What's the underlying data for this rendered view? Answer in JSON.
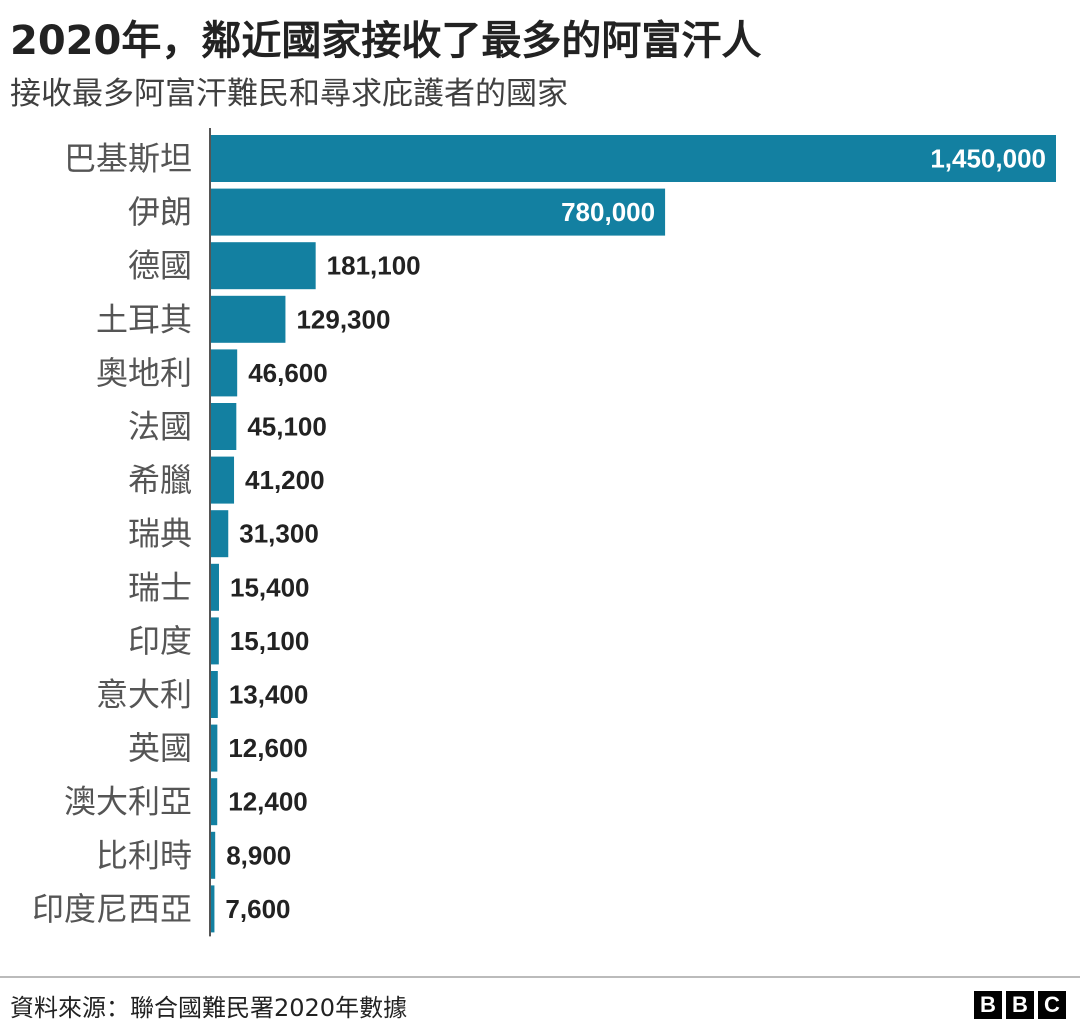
{
  "header": {
    "title": "2020年，鄰近國家接收了最多的阿富汗人",
    "subtitle": "接收最多阿富汗難民和尋求庇護者的國家"
  },
  "footer": {
    "source": "資料來源：聯合國難民署2020年數據",
    "logo_letters": [
      "B",
      "B",
      "C"
    ]
  },
  "colors": {
    "bar": "#1380a1",
    "axis": "#555555",
    "label_inside": "#ffffff",
    "label_outside": "#222222",
    "category_text": "#555555"
  },
  "chart_data": {
    "type": "bar",
    "orientation": "horizontal",
    "categories": [
      "巴基斯坦",
      "伊朗",
      "德國",
      "土耳其",
      "奧地利",
      "法國",
      "希臘",
      "瑞典",
      "瑞士",
      "印度",
      "意大利",
      "英國",
      "澳大利亞",
      "比利時",
      "印度尼西亞"
    ],
    "values": [
      1450000,
      780000,
      181100,
      129300,
      46600,
      45100,
      41200,
      31300,
      15400,
      15100,
      13400,
      12600,
      12400,
      8900,
      7600
    ],
    "value_labels": [
      "1,450,000",
      "780,000",
      "181,100",
      "129,300",
      "46,600",
      "45,100",
      "41,200",
      "31,300",
      "15,400",
      "15,100",
      "13,400",
      "12,600",
      "12,400",
      "8,900",
      "7,600"
    ],
    "title": "2020年，鄰近國家接收了最多的阿富汗人",
    "subtitle": "接收最多阿富汗難民和尋求庇護者的國家",
    "xlim": [
      0,
      1450000
    ],
    "grid": false,
    "legend": "none"
  }
}
